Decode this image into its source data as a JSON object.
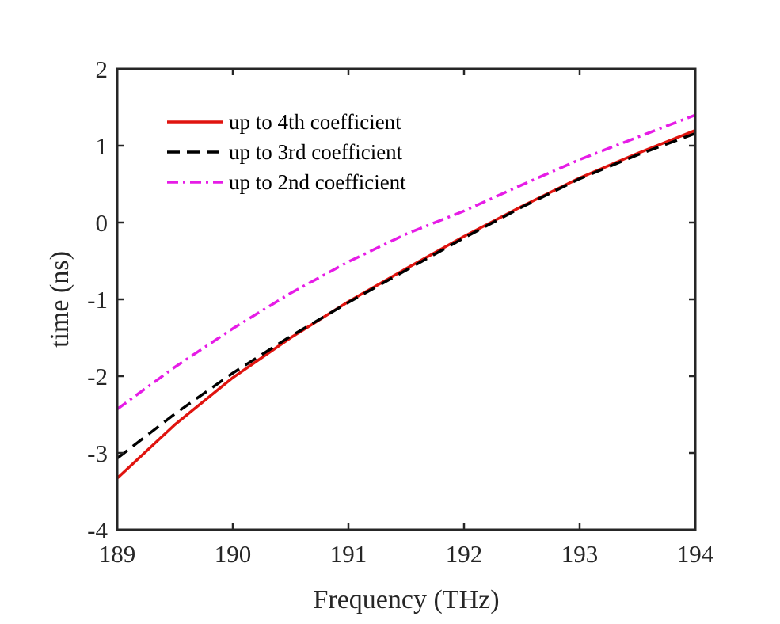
{
  "chart_data": {
    "type": "line",
    "title": "",
    "xlabel": "Frequency (THz)",
    "ylabel": "time (ns)",
    "xlim": [
      189,
      194
    ],
    "ylim": [
      -4,
      2
    ],
    "xticks": [
      189,
      190,
      191,
      192,
      193,
      194
    ],
    "yticks": [
      -4,
      -3,
      -2,
      -1,
      0,
      1,
      2
    ],
    "grid": false,
    "legend_position": "top-left",
    "series": [
      {
        "name": "up to 4th coefficient",
        "color": "#e0140f",
        "style": "solid",
        "x": [
          189,
          189.5,
          190,
          190.5,
          191,
          191.5,
          192,
          192.5,
          193,
          193.5,
          194
        ],
        "y": [
          -3.33,
          -2.63,
          -2.02,
          -1.5,
          -1.03,
          -0.6,
          -0.18,
          0.21,
          0.58,
          0.9,
          1.2
        ]
      },
      {
        "name": "up to 3rd coefficient",
        "color": "#000000",
        "style": "dashed",
        "x": [
          189,
          189.5,
          190,
          190.5,
          191,
          191.5,
          192,
          192.5,
          193,
          193.5,
          194
        ],
        "y": [
          -3.07,
          -2.49,
          -1.96,
          -1.48,
          -1.04,
          -0.62,
          -0.2,
          0.2,
          0.57,
          0.88,
          1.16
        ]
      },
      {
        "name": "up to 2nd coefficient",
        "color": "#e61ce6",
        "style": "dashdot",
        "x": [
          189,
          189.5,
          190,
          190.5,
          191,
          191.5,
          192,
          192.5,
          193,
          193.5,
          194
        ],
        "y": [
          -2.43,
          -1.88,
          -1.38,
          -0.92,
          -0.51,
          -0.15,
          0.15,
          0.49,
          0.82,
          1.11,
          1.4
        ]
      }
    ]
  }
}
